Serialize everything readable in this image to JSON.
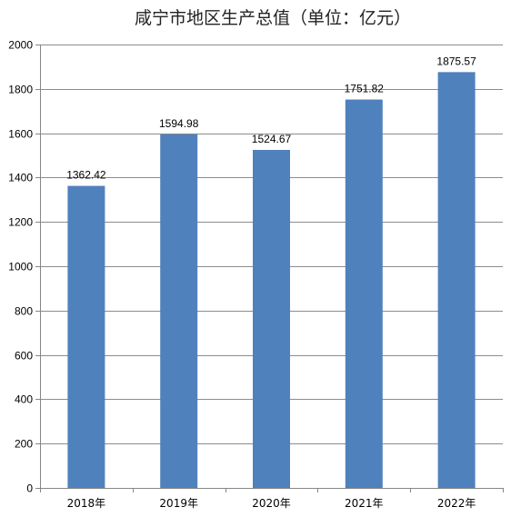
{
  "chart_data": {
    "type": "bar",
    "title": "咸宁市地区生产总值（单位：亿元）",
    "categories": [
      "2018年",
      "2019年",
      "2020年",
      "2021年",
      "2022年"
    ],
    "values": [
      1362.42,
      1594.98,
      1524.67,
      1751.82,
      1875.57
    ],
    "value_labels": [
      "1362.42",
      "1594.98",
      "1524.67",
      "1751.82",
      "1875.57"
    ],
    "ylim": [
      0,
      2000
    ],
    "yticks": [
      0,
      200,
      400,
      600,
      800,
      1000,
      1200,
      1400,
      1600,
      1800,
      2000
    ],
    "xlabel": "",
    "ylabel": "",
    "grid": true,
    "legend": "none",
    "colors": {
      "bar": "#4f81bd",
      "grid": "#8c8c8c",
      "axis": "#868686"
    }
  }
}
